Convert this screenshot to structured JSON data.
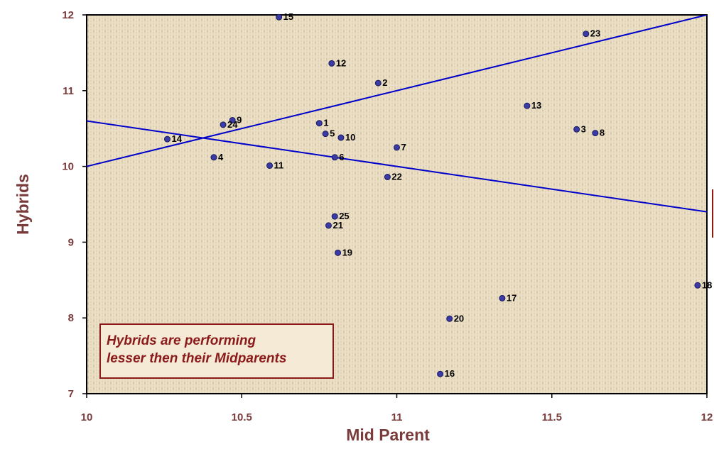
{
  "chart_data": {
    "type": "scatter",
    "title": "",
    "xlabel": "Mid Parent",
    "ylabel": "Hybrids",
    "xlim": [
      10,
      12
    ],
    "ylim": [
      7,
      12
    ],
    "xticks": [
      "10",
      "10.5",
      "11",
      "11.5",
      "12"
    ],
    "yticks": [
      "7",
      "8",
      "9",
      "10",
      "11",
      "12"
    ],
    "grid": false,
    "point_color": "#3b3ba8",
    "line_color": "#0000cc",
    "points": [
      {
        "label": "1",
        "x": 10.75,
        "y": 10.57
      },
      {
        "label": "2",
        "x": 10.94,
        "y": 11.1
      },
      {
        "label": "3",
        "x": 11.58,
        "y": 10.49
      },
      {
        "label": "4",
        "x": 10.41,
        "y": 10.12
      },
      {
        "label": "5",
        "x": 10.77,
        "y": 10.43
      },
      {
        "label": "6",
        "x": 10.8,
        "y": 10.12
      },
      {
        "label": "7",
        "x": 11.0,
        "y": 10.25
      },
      {
        "label": "8",
        "x": 11.64,
        "y": 10.44
      },
      {
        "label": "9",
        "x": 10.47,
        "y": 10.61
      },
      {
        "label": "10",
        "x": 10.82,
        "y": 10.38
      },
      {
        "label": "11",
        "x": 10.59,
        "y": 10.01
      },
      {
        "label": "12",
        "x": 10.79,
        "y": 11.36
      },
      {
        "label": "13",
        "x": 11.42,
        "y": 10.8
      },
      {
        "label": "14",
        "x": 10.26,
        "y": 10.36
      },
      {
        "label": "15",
        "x": 10.62,
        "y": 11.97
      },
      {
        "label": "16",
        "x": 11.14,
        "y": 7.26
      },
      {
        "label": "17",
        "x": 11.34,
        "y": 8.26
      },
      {
        "label": "18",
        "x": 11.97,
        "y": 8.43
      },
      {
        "label": "19",
        "x": 10.81,
        "y": 8.86
      },
      {
        "label": "20",
        "x": 11.17,
        "y": 7.99
      },
      {
        "label": "21",
        "x": 10.78,
        "y": 9.22
      },
      {
        "label": "22",
        "x": 10.97,
        "y": 9.86
      },
      {
        "label": "23",
        "x": 11.61,
        "y": 11.75
      },
      {
        "label": "24",
        "x": 10.44,
        "y": 10.55
      },
      {
        "label": "25",
        "x": 10.8,
        "y": 9.34
      }
    ],
    "lines": [
      {
        "name": "",
        "x": [
          10,
          12
        ],
        "y": [
          10,
          12
        ]
      },
      {
        "name": "",
        "x": [
          10,
          12
        ],
        "y": [
          10.6,
          9.4
        ]
      }
    ],
    "annotation": [
      "Hybrids are performing",
      "lesser then their Midparents"
    ]
  }
}
